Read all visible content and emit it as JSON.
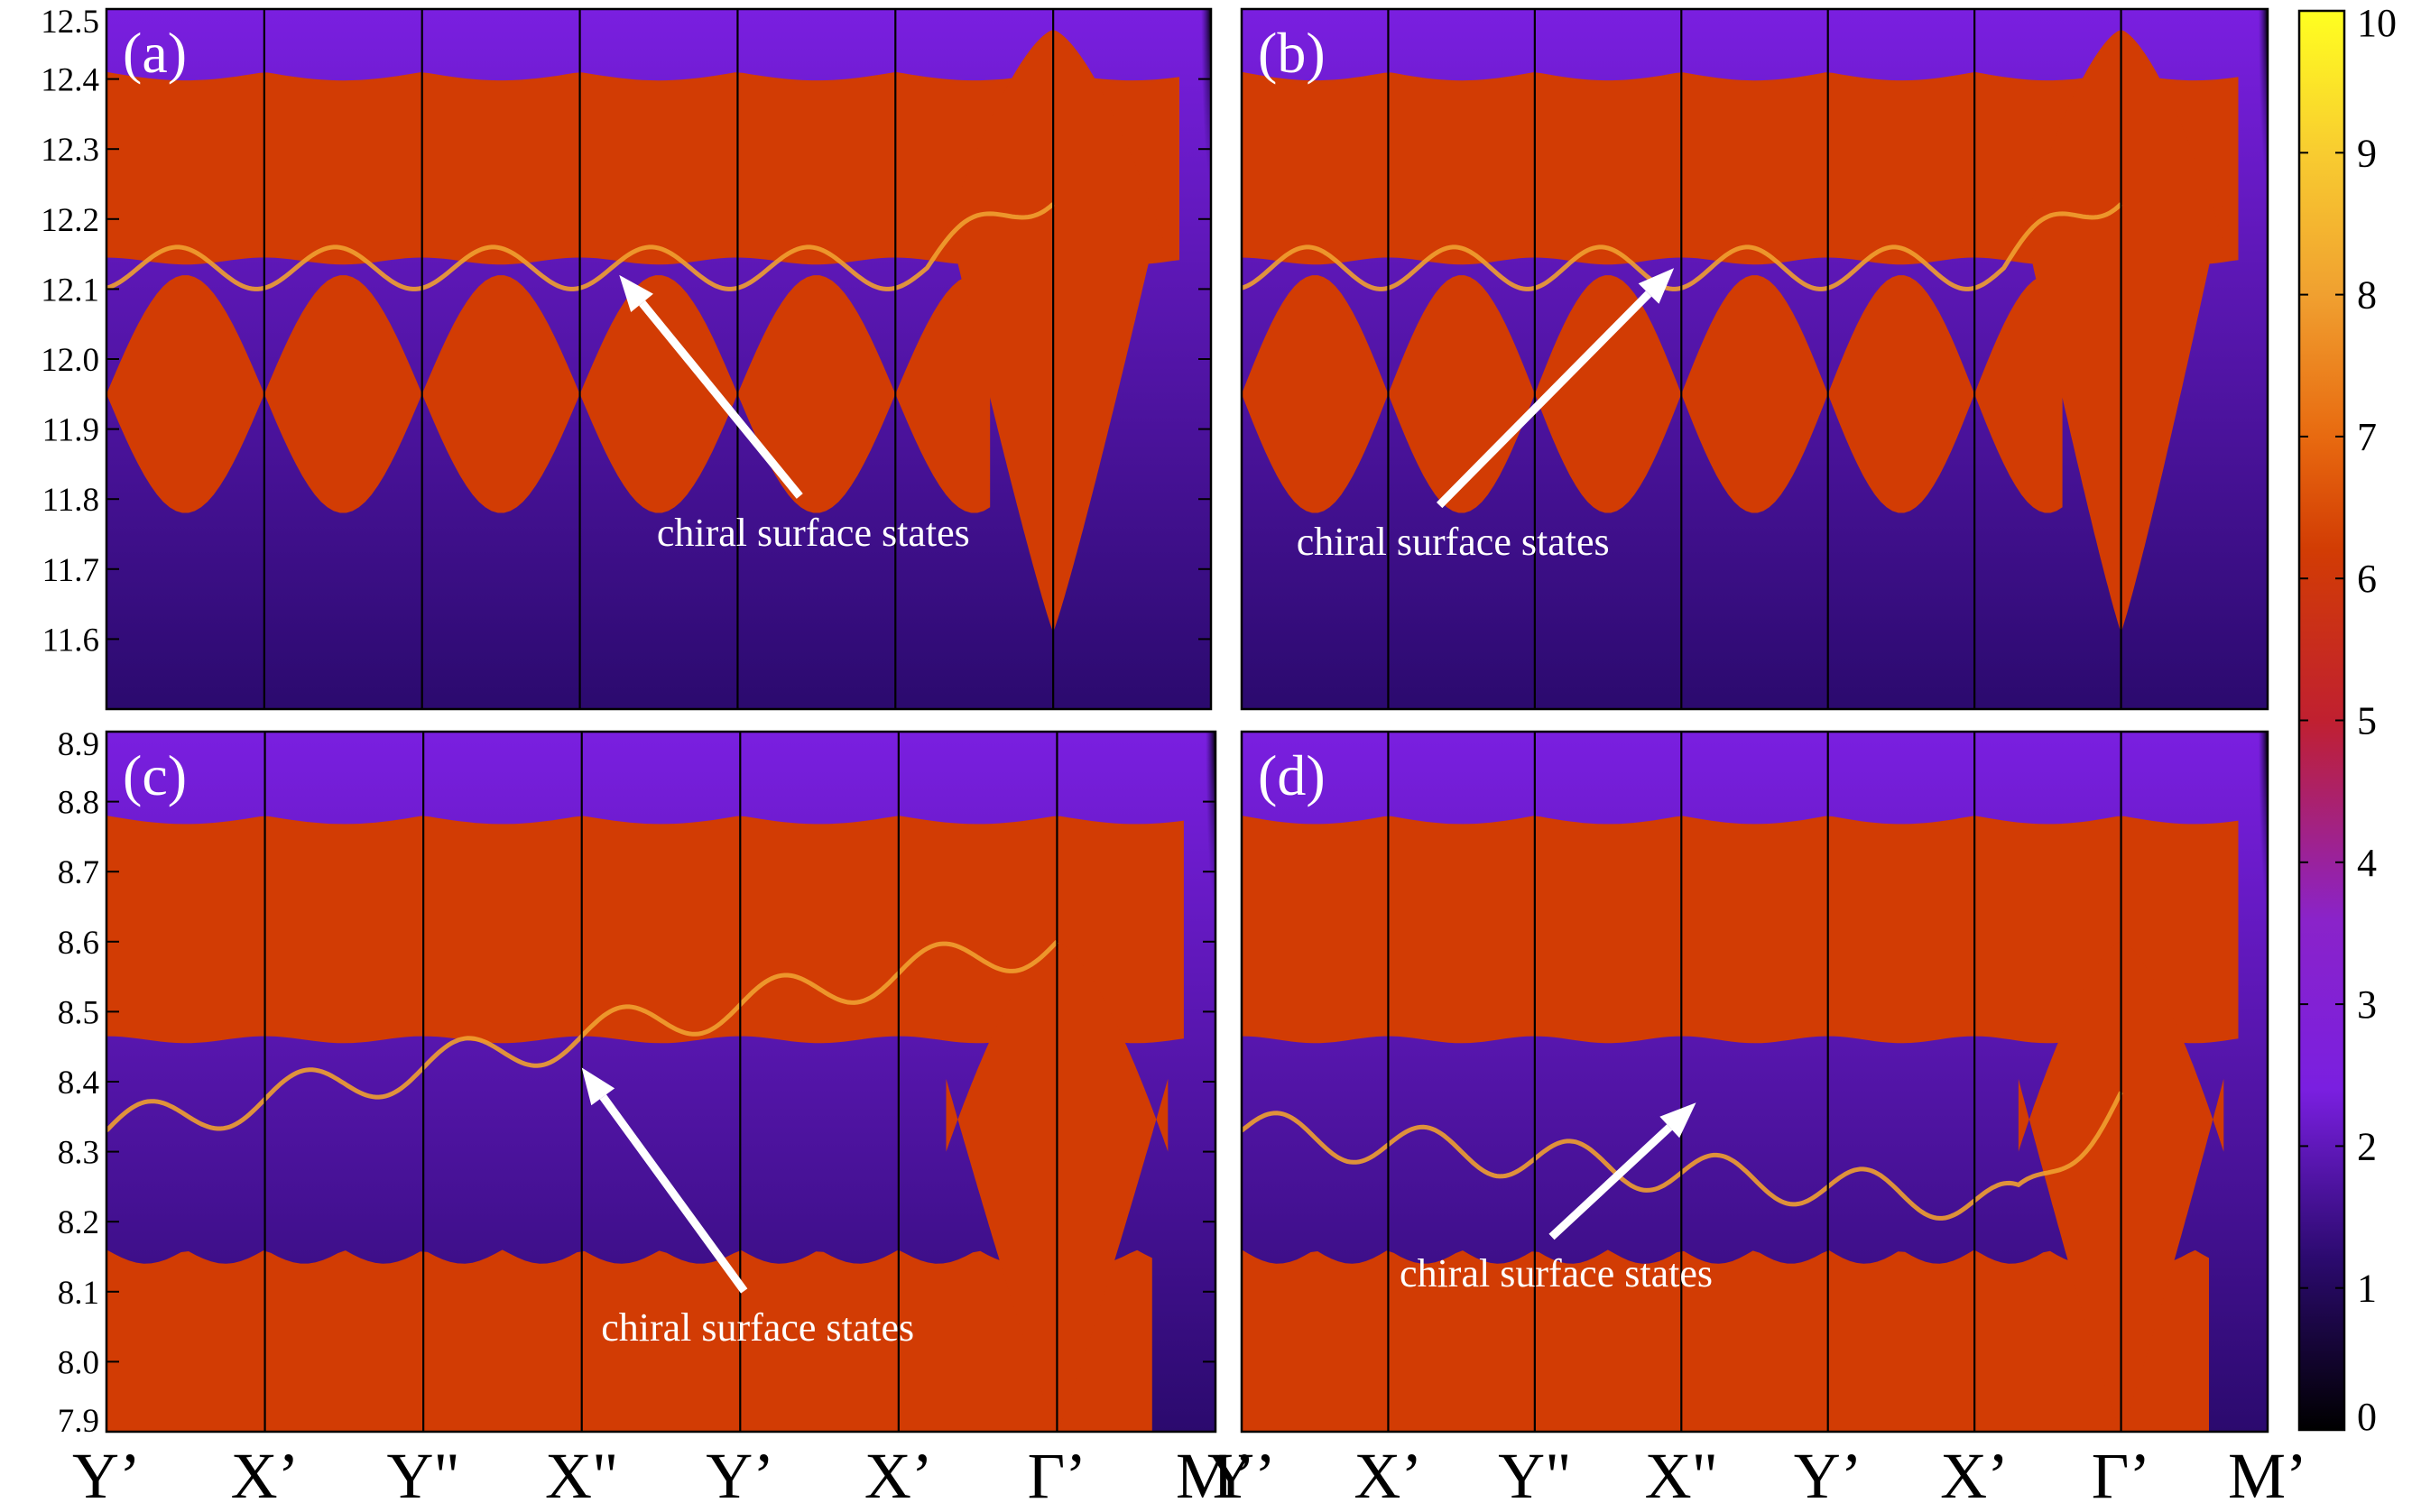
{
  "figure": {
    "colorbar": {
      "min": 0,
      "max": 10,
      "ticks": [
        "0",
        "1",
        "2",
        "3",
        "4",
        "5",
        "6",
        "7",
        "8",
        "9",
        "10"
      ],
      "colormap": [
        {
          "v": 0,
          "color": "#000000"
        },
        {
          "v": 1.2,
          "color": "#2b0a6e"
        },
        {
          "v": 2.4,
          "color": "#7a1fe0"
        },
        {
          "v": 3.6,
          "color": "#8a23c9"
        },
        {
          "v": 5.0,
          "color": "#c02030"
        },
        {
          "v": 6.2,
          "color": "#d23c04"
        },
        {
          "v": 7.0,
          "color": "#e86a10"
        },
        {
          "v": 8.0,
          "color": "#f0a030"
        },
        {
          "v": 9.0,
          "color": "#f8cc30"
        },
        {
          "v": 10,
          "color": "#ffff20"
        }
      ]
    },
    "x_tick_labels": [
      "Y’",
      "X’",
      "Y\"",
      "X\"",
      "Y’",
      "X’",
      "Γ’",
      "M’"
    ],
    "annotation_text": "chiral surface states"
  },
  "chart_data": [
    {
      "type": "heatmap",
      "panel_label": "(a)",
      "title": "",
      "xlabel": "",
      "ylabel": "",
      "ylim": [
        11.5,
        12.5
      ],
      "y_tick_labels": [
        "11.6",
        "11.7",
        "11.8",
        "11.9",
        "12.0",
        "12.1",
        "12.2",
        "12.3",
        "12.4",
        "12.5"
      ],
      "k_points": [
        "Y’",
        "X’",
        "Y\"",
        "X\"",
        "Y’",
        "X’",
        "Γ’",
        "M’"
      ],
      "k_positions": [
        0,
        1,
        2,
        3,
        4,
        5,
        6,
        7
      ],
      "bulk_upper_range": [
        12.14,
        12.41
      ],
      "bulk_lower_range": [
        11.78,
        12.12
      ],
      "gamma_cone_range": [
        11.61,
        12.47
      ],
      "annotation": {
        "text": "chiral surface states",
        "arrow_tip": {
          "k": 3.25,
          "E": 12.12
        }
      }
    },
    {
      "type": "heatmap",
      "panel_label": "(b)",
      "title": "",
      "xlabel": "",
      "ylabel": "",
      "ylim": [
        11.5,
        12.5
      ],
      "y_tick_labels": [],
      "k_points": [
        "Y’",
        "X’",
        "Y\"",
        "X\"",
        "Y’",
        "X’",
        "Γ’",
        "M’"
      ],
      "k_positions": [
        0,
        1,
        2,
        3,
        4,
        5,
        6,
        7
      ],
      "bulk_upper_range": [
        12.14,
        12.41
      ],
      "bulk_lower_range": [
        11.78,
        12.12
      ],
      "gamma_cone_range": [
        11.61,
        12.47
      ],
      "annotation": {
        "text": "chiral surface states",
        "arrow_tip": {
          "k": 2.95,
          "E": 12.13
        }
      }
    },
    {
      "type": "heatmap",
      "panel_label": "(c)",
      "title": "",
      "xlabel": "",
      "ylabel": "",
      "ylim": [
        7.9,
        8.9
      ],
      "y_tick_labels": [
        "7.9",
        "8.0",
        "8.1",
        "8.2",
        "8.3",
        "8.4",
        "8.5",
        "8.6",
        "8.7",
        "8.8",
        "8.9"
      ],
      "k_points": [
        "Y’",
        "X’",
        "Y\"",
        "X\"",
        "Y’",
        "X’",
        "Γ’",
        "M’"
      ],
      "k_positions": [
        0,
        1,
        2,
        3,
        4,
        5,
        6,
        7
      ],
      "bulk_upper_range": [
        8.46,
        8.78
      ],
      "bulk_lower_range": [
        7.9,
        8.16
      ],
      "gamma_cone_range": [
        7.9,
        8.6
      ],
      "annotation": {
        "text": "chiral surface states",
        "arrow_tip": {
          "k": 3.0,
          "E": 8.42
        }
      }
    },
    {
      "type": "heatmap",
      "panel_label": "(d)",
      "title": "",
      "xlabel": "",
      "ylabel": "",
      "ylim": [
        7.9,
        8.9
      ],
      "y_tick_labels": [],
      "k_points": [
        "Y’",
        "X’",
        "Y\"",
        "X\"",
        "Y’",
        "X’",
        "Γ’",
        "M’"
      ],
      "k_positions": [
        0,
        1,
        2,
        3,
        4,
        5,
        6,
        7
      ],
      "bulk_upper_range": [
        8.46,
        8.78
      ],
      "bulk_lower_range": [
        7.9,
        8.16
      ],
      "gamma_cone_range": [
        7.9,
        8.6
      ],
      "annotation": {
        "text": "chiral surface states",
        "arrow_tip": {
          "k": 3.1,
          "E": 8.37
        }
      }
    }
  ]
}
